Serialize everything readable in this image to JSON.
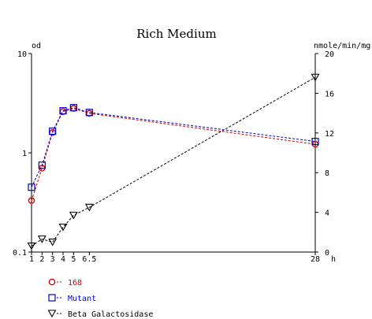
{
  "chart_data": {
    "type": "line",
    "title": "Rich Medium",
    "left_axis": {
      "label": "od",
      "scale": "log",
      "range": [
        0.1,
        10
      ],
      "ticks": [
        {
          "value": 0.1,
          "label": "0.1"
        },
        {
          "value": 1,
          "label": "1"
        },
        {
          "value": 10,
          "label": "10"
        }
      ]
    },
    "right_axis": {
      "label": "nmole/min/mg",
      "scale": "linear",
      "range": [
        0,
        20
      ],
      "ticks": [
        {
          "value": 0,
          "label": "0"
        },
        {
          "value": 4,
          "label": "4"
        },
        {
          "value": 8,
          "label": "8"
        },
        {
          "value": 12,
          "label": "12"
        },
        {
          "value": 16,
          "label": "16"
        },
        {
          "value": 20,
          "label": "20"
        }
      ]
    },
    "x_axis": {
      "label": "h",
      "ticks": [
        {
          "value": 1,
          "label": "1"
        },
        {
          "value": 2,
          "label": "2"
        },
        {
          "value": 3,
          "label": "3"
        },
        {
          "value": 4,
          "label": "4"
        },
        {
          "value": 5,
          "label": "5"
        },
        {
          "value": 6.5,
          "label": "6.5"
        },
        {
          "value": 28,
          "label": "28"
        }
      ]
    },
    "legend_position": "bottom-left",
    "series": [
      {
        "name": "168",
        "axis": "left",
        "marker": "circle",
        "color": "#cc0000",
        "x": [
          1,
          2,
          3,
          4,
          5,
          6.5,
          28
        ],
        "y": [
          0.33,
          0.7,
          1.6,
          2.6,
          2.8,
          2.5,
          1.22
        ]
      },
      {
        "name": "Mutant",
        "axis": "left",
        "marker": "square",
        "color": "#0000cc",
        "x": [
          1,
          2,
          3,
          4,
          5,
          6.5,
          28
        ],
        "y": [
          0.45,
          0.75,
          1.65,
          2.65,
          2.85,
          2.55,
          1.3
        ]
      },
      {
        "name": "Beta Galactosidase",
        "axis": "right",
        "marker": "triangle-down",
        "color": "#000000",
        "x": [
          1,
          2,
          3,
          4,
          5,
          6.5,
          28
        ],
        "y": [
          0.6,
          1.3,
          1.0,
          2.5,
          3.7,
          4.5,
          17.6
        ]
      }
    ]
  }
}
